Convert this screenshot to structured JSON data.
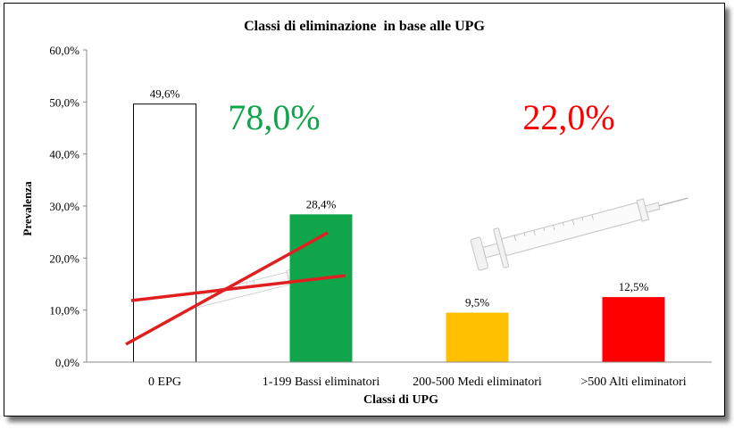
{
  "chart_data": {
    "type": "bar",
    "title": "Classi di eliminazione  in base alle UPG",
    "xlabel": "Classi di UPG",
    "ylabel": "Prevalenza",
    "ylim": [
      0,
      60
    ],
    "yticks": [
      "0,0%",
      "10,0%",
      "20,0%",
      "30,0%",
      "40,0%",
      "50,0%",
      "60,0%"
    ],
    "categories": [
      "0 EPG",
      "1-199 Bassi eliminatori",
      "200-500 Medi eliminatori",
      ">500  Alti eliminatori"
    ],
    "values": [
      49.6,
      28.4,
      9.5,
      12.5
    ],
    "value_labels": [
      "49,6%",
      "28,4%",
      "9,5%",
      "12,5%"
    ],
    "bar_colors": [
      "#ffffff",
      "#10a54a",
      "#ffc000",
      "#ff0000"
    ],
    "grid": false,
    "annotations": [
      {
        "text": "78,0%",
        "color": "#10a54a"
      },
      {
        "text": "22,0%",
        "color": "#ff0000"
      }
    ]
  }
}
